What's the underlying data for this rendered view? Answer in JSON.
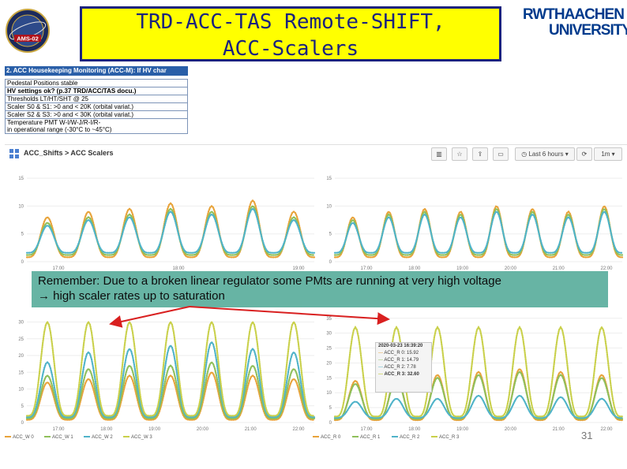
{
  "title": {
    "line1": "TRD-ACC-TAS Remote-SHIFT,",
    "line2": "ACC-Scalers"
  },
  "logo_ams": {
    "text": "AMS-02"
  },
  "logo_rwth": {
    "line1": "RWTHAACHEN",
    "line2": "UNIVERSITY"
  },
  "housekeeping": {
    "header": "2. ACC Housekeeping Monitoring (ACC-M): If HV char",
    "rows": [
      "Pedestal Positions stable",
      "HV settings ok? (p.37 TRD/ACC/TAS docu.)",
      "Thresholds LT/HT/SHT @ 25",
      "Scaler S0 & S1:   >0 and < 20K (orbital variat.)",
      "Scaler S2 & S3:   >0 and < 30K (orbital variat.)",
      "Temperature PMT W-I/W-J/R-I/R-",
      "in operational range (-30°C to ~45°C)"
    ]
  },
  "toolbar": {
    "breadcrumb": "ACC_Shifts > ACC Scalers",
    "time_range": "Last 6 hours",
    "refresh": "1m"
  },
  "banner": {
    "line1": "Remember: Due to a broken linear regulator some PMts are running at very high voltage",
    "line2": "→ high scaler rates up to saturation"
  },
  "page_number": "31",
  "tooltip": {
    "time": "2020-03-23 16:39:20",
    "rows": [
      {
        "name": "ACC_R 0:",
        "value": "15.92"
      },
      {
        "name": "ACC_R 1:",
        "value": "14.79"
      },
      {
        "name": "ACC_R 2:",
        "value": "7.78"
      },
      {
        "name": "ACC_R 3:",
        "value": "32.60"
      }
    ]
  },
  "colors": {
    "s0": "#e8a33a",
    "s1": "#8fbf5a",
    "s2": "#4fb3c9",
    "s3": "#c9d04a",
    "arrow": "#d92020",
    "banner": "#5fb0a0",
    "title_bg": "#ffff00",
    "title_fg": "#1a237e"
  },
  "chart_data": [
    {
      "type": "line",
      "title": "",
      "x_ticks": [
        "17:00",
        "18:00",
        "19:00"
      ],
      "y_ticks": [
        "0",
        "5",
        "10",
        "15"
      ],
      "ylim": [
        0,
        17
      ],
      "series": [
        {
          "name": "",
          "peaks": [
            8,
            9,
            9.5,
            10.5,
            10,
            11,
            9
          ]
        },
        {
          "name": "",
          "peaks": [
            7,
            8,
            8.5,
            9.5,
            9,
            10,
            8
          ]
        },
        {
          "name": "",
          "peaks": [
            6.5,
            7.5,
            8,
            9,
            8.5,
            9.5,
            7.5
          ]
        }
      ]
    },
    {
      "type": "line",
      "title": "",
      "x_ticks": [
        "17:00",
        "18:00",
        "19:00",
        "20:00",
        "21:00",
        "22:00"
      ],
      "y_ticks": [
        "0",
        "5",
        "10",
        "15"
      ],
      "ylim": [
        0,
        17
      ],
      "series": [
        {
          "name": "",
          "peaks": [
            8,
            9,
            9.5,
            9,
            10,
            9.5,
            9,
            10
          ]
        },
        {
          "name": "",
          "peaks": [
            7.5,
            8.5,
            9,
            8.5,
            9.5,
            9,
            8.5,
            9.5
          ]
        },
        {
          "name": "",
          "peaks": [
            7,
            8,
            8.5,
            8,
            9,
            8.5,
            8,
            9
          ]
        }
      ]
    },
    {
      "type": "line",
      "title": "",
      "x_ticks": [
        "17:00",
        "18:00",
        "19:00",
        "20:00",
        "21:00",
        "22:00"
      ],
      "y_ticks": [
        "0",
        "5",
        "10",
        "15",
        "20",
        "25",
        "30"
      ],
      "ylim": [
        0,
        32
      ],
      "legend": [
        "ACC_W 0",
        "ACC_W 1",
        "ACC_W 2",
        "ACC_W 3"
      ],
      "series": [
        {
          "name": "ACC_W 0",
          "peaks": [
            12,
            13,
            14,
            14,
            15,
            14,
            13
          ]
        },
        {
          "name": "ACC_W 1",
          "peaks": [
            14,
            16,
            17,
            17,
            18,
            17,
            16
          ]
        },
        {
          "name": "ACC_W 2",
          "peaks": [
            18,
            21,
            22,
            23,
            24,
            22,
            21
          ]
        },
        {
          "name": "ACC_W 3",
          "peaks": [
            30,
            30,
            30,
            30,
            30,
            30,
            30
          ]
        }
      ]
    },
    {
      "type": "line",
      "title": "",
      "x_ticks": [
        "17:00",
        "18:00",
        "19:00",
        "20:00",
        "21:00",
        "22:00"
      ],
      "y_ticks": [
        "0",
        "5",
        "10",
        "15",
        "20",
        "25",
        "30",
        "35"
      ],
      "ylim": [
        0,
        36
      ],
      "legend": [
        "ACC_R 0",
        "ACC_R 1",
        "ACC_R 2",
        "ACC_R 3"
      ],
      "series": [
        {
          "name": "ACC_R 0",
          "peaks": [
            14,
            16,
            16,
            17,
            18,
            17,
            16
          ]
        },
        {
          "name": "ACC_R 1",
          "peaks": [
            13,
            15,
            15,
            16,
            17,
            16,
            15
          ]
        },
        {
          "name": "ACC_R 2",
          "peaks": [
            7,
            8,
            8,
            9,
            9,
            8.5,
            8
          ]
        },
        {
          "name": "ACC_R 3",
          "peaks": [
            32,
            32,
            32,
            32,
            32,
            32,
            32
          ]
        }
      ]
    }
  ]
}
